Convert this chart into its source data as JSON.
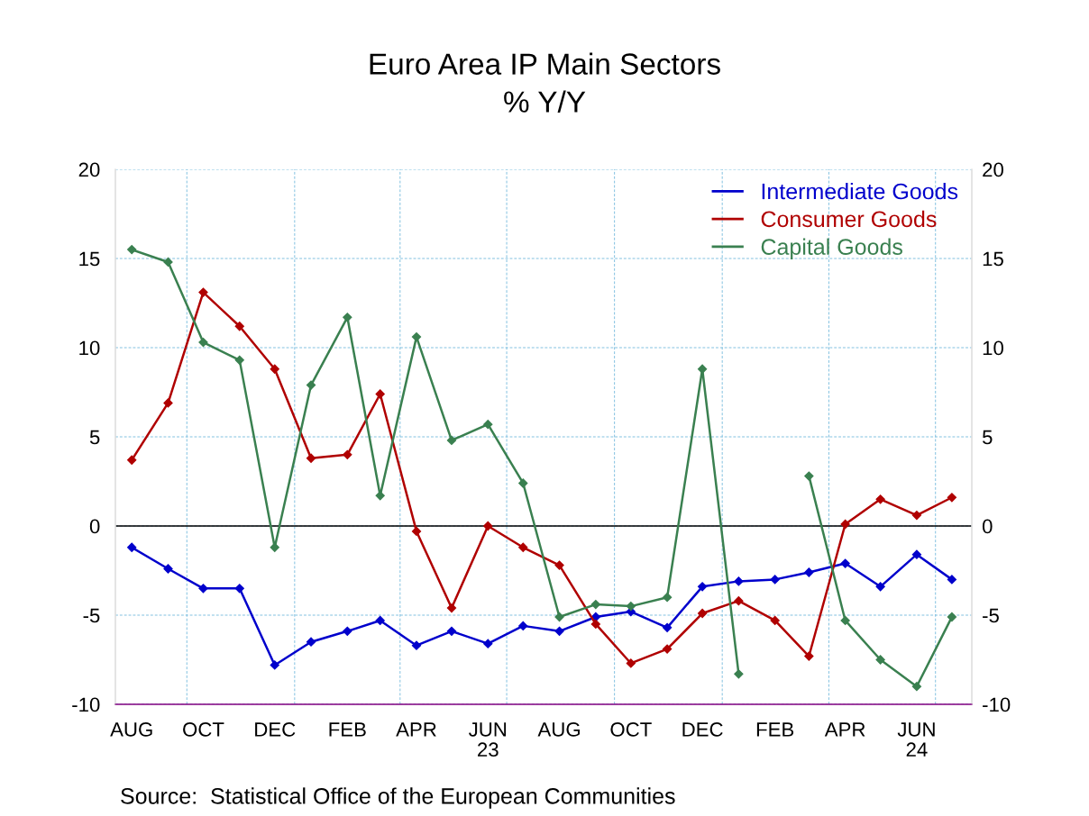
{
  "chart_data": {
    "type": "line",
    "title": "Euro Area IP Main Sectors",
    "subtitle": "% Y/Y",
    "x": [
      "2022-08-15",
      "2022-09-15",
      "2022-10-15",
      "2022-11-15",
      "2022-12-15",
      "2023-01-15",
      "2023-02-15",
      "2023-03-15",
      "2023-04-15",
      "2023-05-15",
      "2023-06-15",
      "2023-07-15",
      "2023-08-15",
      "2023-09-15",
      "2023-10-15",
      "2023-11-15",
      "2023-12-15",
      "2024-01-15",
      "2024-02-15",
      "2024-03-15",
      "2024-04-15",
      "2024-05-15",
      "2024-06-15",
      "2024-07-15"
    ],
    "series": [
      {
        "name": "Intermediate Goods",
        "color": "#0000cc",
        "values": [
          -1.2,
          -2.4,
          -3.5,
          -3.5,
          -7.8,
          -6.5,
          -5.9,
          -5.3,
          -6.7,
          -5.9,
          -6.6,
          -5.6,
          -5.9,
          -5.1,
          -4.8,
          -5.7,
          -3.4,
          -3.1,
          -3.0,
          -2.6,
          -2.1,
          -3.4,
          -1.6,
          -3.0
        ]
      },
      {
        "name": "Consumer Goods",
        "color": "#b00000",
        "values": [
          3.7,
          6.9,
          13.1,
          11.2,
          8.8,
          3.8,
          4.0,
          7.4,
          -0.3,
          -4.6,
          0.0,
          -1.2,
          -2.2,
          -5.5,
          -7.7,
          -6.9,
          -4.9,
          -4.2,
          -5.3,
          -7.3,
          0.1,
          1.5,
          0.6,
          1.6
        ]
      },
      {
        "name": "Capital Goods",
        "color": "#3a8050",
        "values": [
          15.5,
          14.8,
          10.3,
          9.3,
          -1.2,
          7.9,
          11.7,
          1.7,
          10.6,
          4.8,
          5.7,
          2.4,
          -5.1,
          -4.4,
          -4.5,
          -4.0,
          8.8,
          -8.3,
          null,
          2.8,
          -5.3,
          -7.5,
          -9.0,
          -5.1
        ]
      }
    ],
    "xlim": [
      "2022-08-01",
      "2024-08-01"
    ],
    "xticks": [
      {
        "value": "2022-08-15",
        "label": "AUG"
      },
      {
        "value": "2022-10-15",
        "label": "OCT"
      },
      {
        "value": "2022-12-15",
        "label": "DEC"
      },
      {
        "value": "2023-02-15",
        "label": "FEB"
      },
      {
        "value": "2023-04-15",
        "label": "APR"
      },
      {
        "value": "2023-06-15",
        "label": "JUN\n23"
      },
      {
        "value": "2023-08-15",
        "label": "AUG"
      },
      {
        "value": "2023-10-15",
        "label": "OCT"
      },
      {
        "value": "2023-12-15",
        "label": "DEC"
      },
      {
        "value": "2024-02-15",
        "label": "FEB"
      },
      {
        "value": "2024-04-15",
        "label": "APR"
      },
      {
        "value": "2024-06-15",
        "label": "JUN\n24"
      }
    ],
    "ylim": [
      -10,
      20
    ],
    "yticks": [
      -10,
      -5,
      0,
      5,
      10,
      15,
      20
    ],
    "y2lim": [
      -10,
      20
    ],
    "y2ticks": [
      -10,
      -5,
      0,
      5,
      10,
      15,
      20
    ],
    "ref_lines": [
      {
        "axis": "y",
        "value": 0,
        "color": "#000000"
      }
    ],
    "grid": true,
    "legend": "top right",
    "marker": "diamond",
    "line_style": "solid",
    "annotations": [
      "Source:  Statistical Office of the European Communities"
    ]
  }
}
